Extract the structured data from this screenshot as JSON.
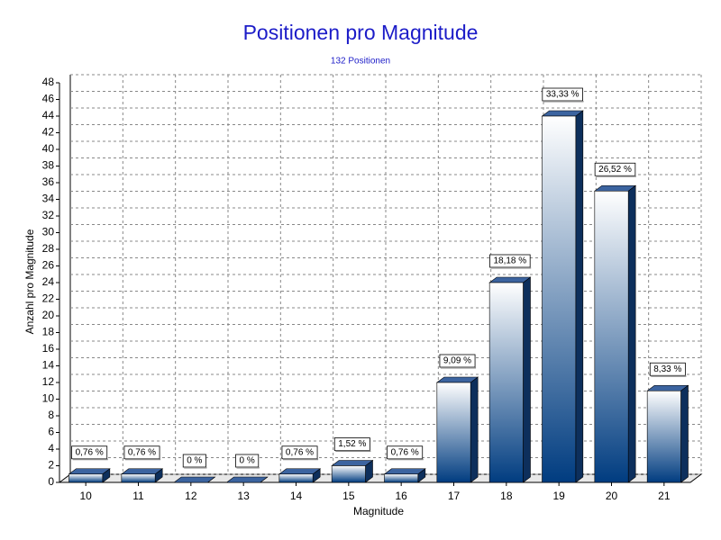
{
  "chart_data": {
    "type": "bar",
    "title": "Positionen pro Magnitude",
    "subtitle": "132 Positionen",
    "x_label": "Magnitude",
    "y_label": "Anzahl pro Magnitude",
    "categories": [
      "10",
      "11",
      "12",
      "13",
      "14",
      "15",
      "16",
      "17",
      "18",
      "19",
      "20",
      "21"
    ],
    "values": [
      1,
      1,
      0,
      0,
      1,
      2,
      1,
      12,
      24,
      44,
      35,
      11
    ],
    "percent_labels": [
      "0,76 %",
      "0,76 %",
      "0 %",
      "0 %",
      "0,76 %",
      "1,52 %",
      "0,76 %",
      "9,09 %",
      "18,18 %",
      "33,33 %",
      "26,52 %",
      "8,33 %"
    ],
    "color": "#003c80",
    "ylim": [
      0,
      48
    ],
    "yticks": [
      0,
      2,
      4,
      6,
      8,
      10,
      12,
      14,
      16,
      18,
      20,
      22,
      24,
      26,
      28,
      30,
      32,
      34,
      36,
      38,
      40,
      42,
      44,
      46,
      48
    ],
    "grid": true
  }
}
